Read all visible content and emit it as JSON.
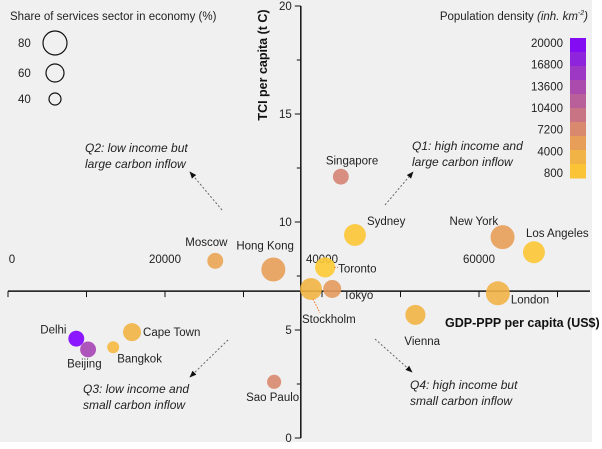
{
  "chart_data": {
    "type": "scatter",
    "xlabel": "GDP-PPP per capita (US$)",
    "ylabel": "TCI per capita (t C)",
    "xlim": [
      0,
      74000
    ],
    "ylim": [
      0,
      20
    ],
    "x_ticks": [
      "0",
      "20000",
      "40000",
      "60000"
    ],
    "y_ticks": [
      "0",
      "5",
      "10",
      "15",
      "20"
    ],
    "axes_cross": {
      "x": 37300,
      "y": 6.8
    },
    "grid": false,
    "size_legend": {
      "title": "Share of services sector in economy (%)",
      "entries": [
        {
          "label": "80",
          "value": 80
        },
        {
          "label": "60",
          "value": 60
        },
        {
          "label": "40",
          "value": 40
        }
      ],
      "placement": "top-left"
    },
    "color_legend": {
      "title": "Population density",
      "title_unit": "(inh. km",
      "title_exp": "-2",
      "title_close": ")",
      "ticks": [
        "20000",
        "16800",
        "13600",
        "10400",
        "7200",
        "4000",
        "800"
      ],
      "range": [
        800,
        20000
      ],
      "colors": [
        "#ffcc30",
        "#f0b048",
        "#dc8c6a",
        "#c06a90",
        "#a848b0",
        "#9028d8",
        "#7f00ff"
      ],
      "placement": "top-right"
    },
    "points": [
      {
        "name": "Singapore",
        "gdp": 42400,
        "tci": 12.1,
        "services": 53,
        "density": 8000
      },
      {
        "name": "Sydney",
        "gdp": 44200,
        "tci": 9.4,
        "services": 73,
        "density": 1500
      },
      {
        "name": "New York",
        "gdp": 63000,
        "tci": 9.3,
        "services": 80,
        "density": 5500
      },
      {
        "name": "Los Angeles",
        "gdp": 67000,
        "tci": 8.6,
        "services": 73,
        "density": 1500
      },
      {
        "name": "Moscow",
        "gdp": 26400,
        "tci": 8.2,
        "services": 53,
        "density": 5000
      },
      {
        "name": "Hong Kong",
        "gdp": 33800,
        "tci": 7.8,
        "services": 80,
        "density": 5500
      },
      {
        "name": "Toronto",
        "gdp": 40400,
        "tci": 7.9,
        "services": 67,
        "density": 1200
      },
      {
        "name": "Tokyo",
        "gdp": 41300,
        "tci": 6.9,
        "services": 60,
        "density": 6000
      },
      {
        "name": "Stockholm",
        "gdp": 38600,
        "tci": 6.9,
        "services": 73,
        "density": 3500
      },
      {
        "name": "London",
        "gdp": 62400,
        "tci": 6.7,
        "services": 80,
        "density": 3800
      },
      {
        "name": "Vienna",
        "gdp": 51900,
        "tci": 5.7,
        "services": 67,
        "density": 3500
      },
      {
        "name": "Cape Town",
        "gdp": 15800,
        "tci": 4.9,
        "services": 60,
        "density": 3500
      },
      {
        "name": "Delhi",
        "gdp": 8700,
        "tci": 4.6,
        "services": 53,
        "density": 20000
      },
      {
        "name": "Beijing",
        "gdp": 10200,
        "tci": 4.1,
        "services": 53,
        "density": 14000
      },
      {
        "name": "Bangkok",
        "gdp": 13400,
        "tci": 4.2,
        "services": 40,
        "density": 3000
      },
      {
        "name": "Sao Paulo",
        "gdp": 33900,
        "tci": 2.6,
        "services": 47,
        "density": 7600
      }
    ],
    "annotations": {
      "q1": [
        "Q1: high income and",
        "large carbon inflow"
      ],
      "q2": [
        "Q2: low income but",
        "large carbon inflow"
      ],
      "q3": [
        "Q3: low income and",
        "small carbon inflow"
      ],
      "q4": [
        "Q4: high income but",
        "small carbon inflow"
      ]
    }
  }
}
